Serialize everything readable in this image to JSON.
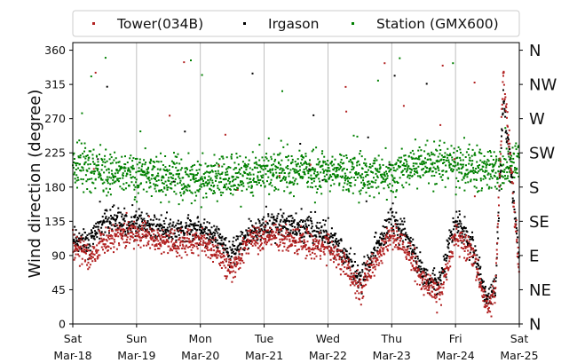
{
  "chart_data": {
    "type": "scatter",
    "ylabel": "Wind direction (degree)",
    "xlabel": "",
    "ylim": [
      0,
      370
    ],
    "yticks": [
      0,
      45,
      90,
      135,
      180,
      225,
      270,
      315,
      360
    ],
    "x_range_days": [
      "2018-03-18",
      "2018-03-25"
    ],
    "x_ticks": [
      {
        "day": "Sat",
        "date": "Mar-18"
      },
      {
        "day": "Sun",
        "date": "Mar-19"
      },
      {
        "day": "Mon",
        "date": "Mar-20"
      },
      {
        "day": "Tue",
        "date": "Mar-21"
      },
      {
        "day": "Wed",
        "date": "Mar-22"
      },
      {
        "day": "Thu",
        "date": "Mar-23"
      },
      {
        "day": "Fri",
        "date": "Mar-24"
      },
      {
        "day": "Sat",
        "date": "Mar-25"
      }
    ],
    "compass_labels": [
      {
        "label": "N",
        "deg": 0
      },
      {
        "label": "NE",
        "deg": 45
      },
      {
        "label": "E",
        "deg": 90
      },
      {
        "label": "SE",
        "deg": 135
      },
      {
        "label": "S",
        "deg": 180
      },
      {
        "label": "SW",
        "deg": 225
      },
      {
        "label": "W",
        "deg": 270
      },
      {
        "label": "NW",
        "deg": 315
      },
      {
        "label": "N",
        "deg": 360
      }
    ],
    "grid": {
      "x": true,
      "y": false
    },
    "legend_position": "top-center",
    "series": [
      {
        "name": "Tower(034B)",
        "color": "#b22222",
        "approx_track": [
          [
            "2018-03-18 00:00",
            105
          ],
          [
            "2018-03-18 06:00",
            85
          ],
          [
            "2018-03-18 12:00",
            110
          ],
          [
            "2018-03-18 18:00",
            120
          ],
          [
            "2018-03-19 00:00",
            120
          ],
          [
            "2018-03-19 12:00",
            105
          ],
          [
            "2018-03-20 00:00",
            110
          ],
          [
            "2018-03-20 06:00",
            95
          ],
          [
            "2018-03-20 12:00",
            70
          ],
          [
            "2018-03-20 18:00",
            110
          ],
          [
            "2018-03-21 06:00",
            115
          ],
          [
            "2018-03-21 18:00",
            105
          ],
          [
            "2018-03-22 00:00",
            100
          ],
          [
            "2018-03-22 06:00",
            80
          ],
          [
            "2018-03-22 12:00",
            45
          ],
          [
            "2018-03-22 18:00",
            85
          ],
          [
            "2018-03-23 00:00",
            120
          ],
          [
            "2018-03-23 06:00",
            95
          ],
          [
            "2018-03-23 12:00",
            55
          ],
          [
            "2018-03-23 18:00",
            40
          ],
          [
            "2018-03-24 00:00",
            115
          ],
          [
            "2018-03-24 06:00",
            95
          ],
          [
            "2018-03-24 12:00",
            20
          ],
          [
            "2018-03-24 15:00",
            40
          ],
          [
            "2018-03-24 18:00",
            330
          ],
          [
            "2018-03-25 00:00",
            70
          ]
        ]
      },
      {
        "name": "Irgason",
        "color": "#000000",
        "approx_track": [
          [
            "2018-03-18 00:00",
            115
          ],
          [
            "2018-03-18 06:00",
            105
          ],
          [
            "2018-03-18 12:00",
            140
          ],
          [
            "2018-03-18 18:00",
            135
          ],
          [
            "2018-03-19 00:00",
            130
          ],
          [
            "2018-03-19 12:00",
            125
          ],
          [
            "2018-03-20 00:00",
            125
          ],
          [
            "2018-03-20 06:00",
            115
          ],
          [
            "2018-03-20 12:00",
            90
          ],
          [
            "2018-03-20 18:00",
            120
          ],
          [
            "2018-03-21 06:00",
            130
          ],
          [
            "2018-03-21 18:00",
            125
          ],
          [
            "2018-03-22 00:00",
            115
          ],
          [
            "2018-03-22 06:00",
            95
          ],
          [
            "2018-03-22 12:00",
            55
          ],
          [
            "2018-03-22 18:00",
            100
          ],
          [
            "2018-03-23 00:00",
            140
          ],
          [
            "2018-03-23 06:00",
            110
          ],
          [
            "2018-03-23 12:00",
            65
          ],
          [
            "2018-03-23 18:00",
            55
          ],
          [
            "2018-03-24 00:00",
            135
          ],
          [
            "2018-03-24 06:00",
            105
          ],
          [
            "2018-03-24 12:00",
            30
          ],
          [
            "2018-03-24 15:00",
            45
          ],
          [
            "2018-03-24 18:00",
            300
          ],
          [
            "2018-03-25 00:00",
            85
          ]
        ]
      },
      {
        "name": "Station (GMX600)",
        "color": "#008000",
        "approx_track": [
          [
            "2018-03-18 00:00",
            205
          ],
          [
            "2018-03-19 00:00",
            195
          ],
          [
            "2018-03-20 00:00",
            190
          ],
          [
            "2018-03-21 00:00",
            200
          ],
          [
            "2018-03-22 00:00",
            200
          ],
          [
            "2018-03-23 00:00",
            195
          ],
          [
            "2018-03-23 12:00",
            215
          ],
          [
            "2018-03-24 00:00",
            210
          ],
          [
            "2018-03-24 18:00",
            200
          ],
          [
            "2018-03-25 00:00",
            220
          ]
        ]
      }
    ]
  }
}
